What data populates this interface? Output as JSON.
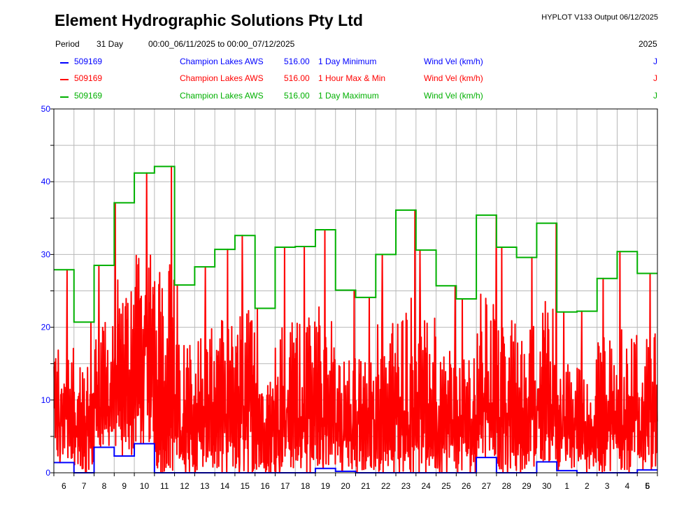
{
  "header": {
    "title": "Element Hydrographic Solutions Pty Ltd",
    "version": "HYPLOT V133  Output 06/12/2025",
    "period_label": "Period",
    "period_length": "31 Day",
    "period_range": "00:00_06/11/2025 to 00:00_07/12/2025",
    "year": "2025"
  },
  "legend": [
    {
      "id": "509169",
      "site": "Champion Lakes AWS",
      "var": "516.00",
      "stat": "1 Day Minimum",
      "units": "Wind Vel (km/h)",
      "flag": "J",
      "color": "#0000ff"
    },
    {
      "id": "509169",
      "site": "Champion Lakes AWS",
      "var": "516.00",
      "stat": "1 Hour Max & Min",
      "units": "Wind Vel (km/h)",
      "flag": "J",
      "color": "#ff0000"
    },
    {
      "id": "509169",
      "site": "Champion Lakes AWS",
      "var": "516.00",
      "stat": "1 Day Maximum",
      "units": "Wind Vel (km/h)",
      "flag": "J",
      "color": "#00b000"
    }
  ],
  "chart_data": {
    "type": "line",
    "ylim": [
      0,
      50
    ],
    "y_ticks": [
      0,
      10,
      20,
      30,
      40,
      50
    ],
    "y_tick_color": "#0000ff",
    "grid": true,
    "x_tick_labels": [
      "6",
      "7",
      "8",
      "9",
      "10",
      "11",
      "12",
      "13",
      "14",
      "15",
      "16",
      "17",
      "18",
      "19",
      "20",
      "21",
      "22",
      "23",
      "24",
      "25",
      "26",
      "27",
      "28",
      "29",
      "30",
      "1",
      "2",
      "3",
      "4",
      "5",
      "6"
    ],
    "series": [
      {
        "name": "1 Day Minimum",
        "color": "#0000ff",
        "step": true,
        "values": [
          1.4,
          0.0,
          3.5,
          2.3,
          4.0,
          0.0,
          0.0,
          0.0,
          0.0,
          0.0,
          0.0,
          0.0,
          0.0,
          0.6,
          0.2,
          0.0,
          0.0,
          0.0,
          0.0,
          0.0,
          0.0,
          2.1,
          0.0,
          0.0,
          1.5,
          0.3,
          0.0,
          0.0,
          0.0,
          0.4
        ]
      },
      {
        "name": "1 Day Maximum",
        "color": "#00b000",
        "step": true,
        "values": [
          27.9,
          20.7,
          28.5,
          37.1,
          41.2,
          42.1,
          25.8,
          28.3,
          30.7,
          32.6,
          22.6,
          31.0,
          31.1,
          33.4,
          25.1,
          24.1,
          30.0,
          36.1,
          30.6,
          25.7,
          23.9,
          35.4,
          31.0,
          29.6,
          34.3,
          22.1,
          22.2,
          26.7,
          30.4,
          27.4
        ]
      },
      {
        "name": "1 Hour Max & Min",
        "color": "#ff0000",
        "step": false,
        "daily_range": [
          [
            1.4,
            27.9
          ],
          [
            0.0,
            20.7
          ],
          [
            3.5,
            28.5
          ],
          [
            2.3,
            37.1
          ],
          [
            4.0,
            41.2
          ],
          [
            0.0,
            42.1
          ],
          [
            0.0,
            25.8
          ],
          [
            0.0,
            28.3
          ],
          [
            0.0,
            30.7
          ],
          [
            0.0,
            32.6
          ],
          [
            0.0,
            22.6
          ],
          [
            0.0,
            31.0
          ],
          [
            0.0,
            31.1
          ],
          [
            0.6,
            33.4
          ],
          [
            0.2,
            25.1
          ],
          [
            0.0,
            24.1
          ],
          [
            0.0,
            30.0
          ],
          [
            0.0,
            36.1
          ],
          [
            0.0,
            30.6
          ],
          [
            0.0,
            25.7
          ],
          [
            0.0,
            23.9
          ],
          [
            2.1,
            35.4
          ],
          [
            0.0,
            31.0
          ],
          [
            0.0,
            29.6
          ],
          [
            1.5,
            34.3
          ],
          [
            0.3,
            22.1
          ],
          [
            0.0,
            22.2
          ],
          [
            0.0,
            26.7
          ],
          [
            0.0,
            30.4
          ],
          [
            0.4,
            27.4
          ]
        ]
      }
    ]
  }
}
